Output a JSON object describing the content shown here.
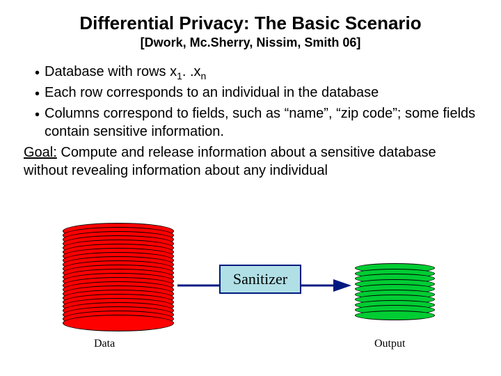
{
  "title": "Differential Privacy: The Basic Scenario",
  "subtitle": "[Dwork, Mc.Sherry, Nissim, Smith 06]",
  "bullets": {
    "b1_pre": "Database with rows x",
    "b1_sub1": "1",
    "b1_mid": ". .x",
    "b1_sub2": "n",
    "b2": "Each row corresponds to an individual in the database",
    "b3": "Columns correspond to fields, such as “name”, “zip code”; some fields contain sensitive information."
  },
  "goal": {
    "label": "Goal:",
    "text": " Compute and release information about a sensitive database without revealing information about any individual"
  },
  "diagram": {
    "sanitizer_label": "Sanitizer",
    "data_label": "Data",
    "output_label": "Output",
    "red_color": "#ff0000",
    "green_color": "#00cc33",
    "sanitizer_bg": "#b0e0e6",
    "sanitizer_border": "#001a80",
    "arrow_color": "#001a80",
    "red_disk_count": 22,
    "green_disk_count": 9
  }
}
